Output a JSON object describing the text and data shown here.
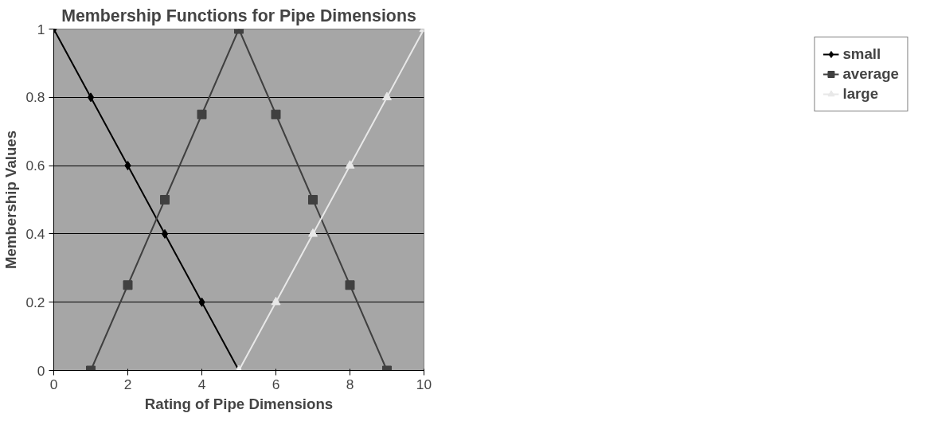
{
  "chart_data": {
    "type": "line",
    "title": "Membership Functions for Pipe Dimensions",
    "xlabel": "Rating of Pipe Dimensions",
    "ylabel": "Membership Values",
    "series": [
      {
        "name": "small",
        "color": "#000000",
        "marker": "diamond",
        "x": [
          0,
          1,
          2,
          3,
          4,
          5
        ],
        "values": [
          1,
          0.8,
          0.6,
          0.4,
          0.2,
          0
        ]
      },
      {
        "name": "average",
        "color": "#404040",
        "marker": "square",
        "x": [
          1,
          2,
          3,
          4,
          5,
          6,
          7,
          8,
          9
        ],
        "values": [
          0,
          0.25,
          0.5,
          0.75,
          1,
          0.75,
          0.5,
          0.25,
          0
        ]
      },
      {
        "name": "large",
        "color": "#e8e8e8",
        "marker": "triangle",
        "x": [
          5,
          6,
          7,
          8,
          9,
          10
        ],
        "values": [
          0,
          0.2,
          0.4,
          0.6,
          0.8,
          1
        ]
      }
    ],
    "xlim": [
      0,
      10
    ],
    "ylim": [
      0,
      1
    ],
    "xticks": [
      0,
      2,
      4,
      6,
      8,
      10
    ],
    "yticks": [
      0,
      0.2,
      0.4,
      0.6,
      0.8,
      1
    ],
    "grid": "y",
    "legend": "right",
    "line_style": "solid"
  }
}
